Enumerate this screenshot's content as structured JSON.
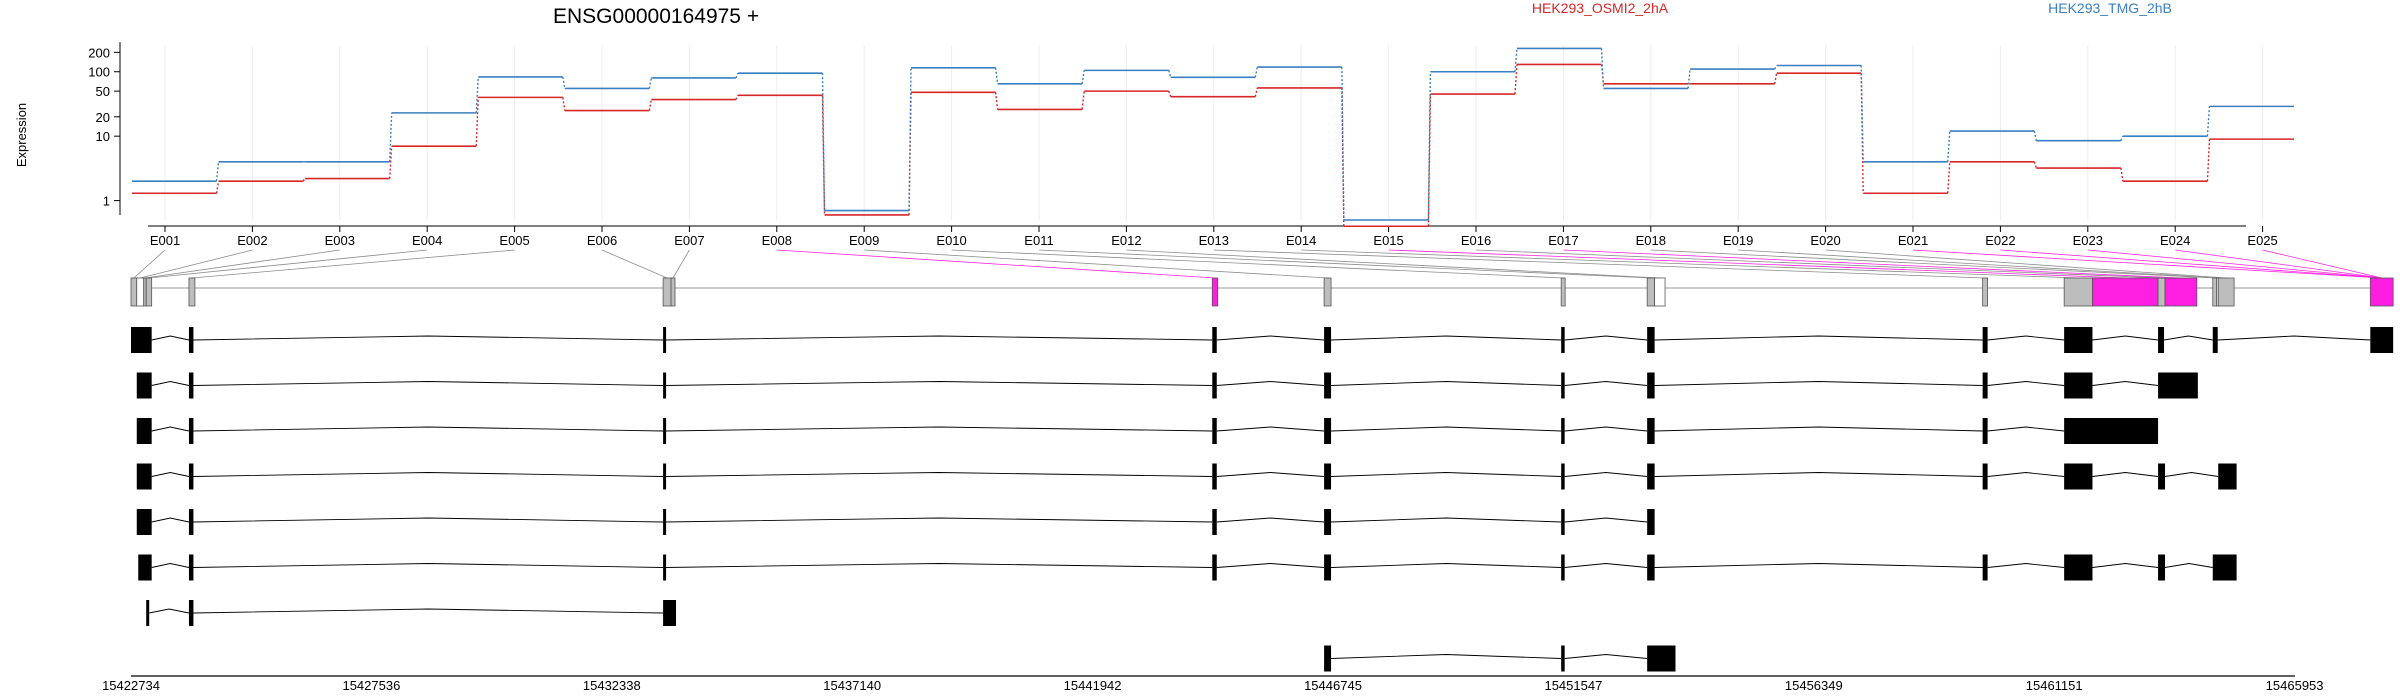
{
  "chart_data": {
    "type": "line",
    "title": "ENSG00000164975 +",
    "ylabel": "Expression",
    "yscale": "log",
    "ylim": [
      0.5,
      260
    ],
    "yticks": [
      1,
      10,
      20,
      50,
      100,
      200
    ],
    "grid": true,
    "legend_placement": "top-right",
    "categories": [
      "E001",
      "E002",
      "E003",
      "E004",
      "E005",
      "E006",
      "E007",
      "E008",
      "E009",
      "E010",
      "E011",
      "E012",
      "E013",
      "E014",
      "E015",
      "E016",
      "E017",
      "E018",
      "E019",
      "E020",
      "E021",
      "E022",
      "E023",
      "E024",
      "E025"
    ],
    "series": [
      {
        "name": "HEK293_OSMI2_2hA",
        "color": "#d62728",
        "values": [
          1.3,
          2.0,
          2.2,
          7,
          40,
          25,
          37,
          43,
          0.6,
          48,
          26,
          50,
          41,
          56,
          0.4,
          45,
          130,
          65,
          65,
          95,
          1.3,
          4,
          3.2,
          2,
          9
        ]
      },
      {
        "name": "HEK293_TMG_2hB",
        "color": "#3a7fc1",
        "values": [
          2.0,
          4.0,
          4.0,
          23,
          83,
          55,
          80,
          95,
          0.7,
          115,
          65,
          105,
          82,
          118,
          0.5,
          100,
          230,
          55,
          110,
          125,
          4.0,
          12,
          8.5,
          10,
          29
        ]
      }
    ],
    "genomic_coords": [
      "15422734",
      "15427536",
      "15432338",
      "15437140",
      "15441942",
      "15446745",
      "15451547",
      "15456349",
      "15461151",
      "15465953"
    ],
    "exon_track": {
      "genome_start": 15422734,
      "genome_end": 15465953,
      "highlight_color": "#ff1fe0",
      "exon_color": "#bdbdbd",
      "bins": [
        {
          "start": 15422734,
          "end": 15422850,
          "style": "gray"
        },
        {
          "start": 15422850,
          "end": 15422990,
          "style": "white"
        },
        {
          "start": 15422990,
          "end": 15423040,
          "style": "gray"
        },
        {
          "start": 15423040,
          "end": 15423150,
          "style": "gray"
        },
        {
          "start": 15423900,
          "end": 15424020,
          "style": "gray"
        },
        {
          "start": 15433440,
          "end": 15433600,
          "style": "gray"
        },
        {
          "start": 15433600,
          "end": 15433680,
          "style": "gray"
        },
        {
          "start": 15444490,
          "end": 15444600,
          "style": "magenta"
        },
        {
          "start": 15446740,
          "end": 15446880,
          "style": "gray"
        },
        {
          "start": 15451510,
          "end": 15451590,
          "style": "gray"
        },
        {
          "start": 15453240,
          "end": 15453390,
          "style": "gray"
        },
        {
          "start": 15453390,
          "end": 15453600,
          "style": "white"
        },
        {
          "start": 15459990,
          "end": 15460090,
          "style": "gray"
        },
        {
          "start": 15461630,
          "end": 15462200,
          "style": "gray"
        },
        {
          "start": 15462200,
          "end": 15463520,
          "style": "magenta"
        },
        {
          "start": 15463520,
          "end": 15463660,
          "style": "gray"
        },
        {
          "start": 15463660,
          "end": 15464300,
          "style": "magenta"
        },
        {
          "start": 15464620,
          "end": 15464700,
          "style": "gray"
        },
        {
          "start": 15464700,
          "end": 15464730,
          "style": "white"
        },
        {
          "start": 15464730,
          "end": 15465050,
          "style": "gray"
        },
        {
          "start": 15467790,
          "end": 15468250,
          "style": "magenta"
        }
      ],
      "transcripts": [
        [
          [
            15422734,
            15423150
          ],
          [
            15423900,
            15423990
          ],
          [
            15433440,
            15433500
          ],
          [
            15444490,
            15444580
          ],
          [
            15446740,
            15446880
          ],
          [
            15451510,
            15451580
          ],
          [
            15453240,
            15453390
          ],
          [
            15459990,
            15460090
          ],
          [
            15461630,
            15462200
          ],
          [
            15463520,
            15463640
          ],
          [
            15464620,
            15464720
          ],
          [
            15467790,
            15468250
          ]
        ],
        [
          [
            15422850,
            15423150
          ],
          [
            15423900,
            15423990
          ],
          [
            15433440,
            15433500
          ],
          [
            15444490,
            15444580
          ],
          [
            15446740,
            15446880
          ],
          [
            15451510,
            15451580
          ],
          [
            15453240,
            15453390
          ],
          [
            15459990,
            15460090
          ],
          [
            15461630,
            15462200
          ],
          [
            15463520,
            15464320
          ]
        ],
        [
          [
            15422850,
            15423150
          ],
          [
            15423900,
            15423990
          ],
          [
            15433440,
            15433500
          ],
          [
            15444490,
            15444580
          ],
          [
            15446740,
            15446880
          ],
          [
            15451510,
            15451580
          ],
          [
            15453240,
            15453390
          ],
          [
            15459990,
            15460090
          ],
          [
            15461630,
            15463520
          ]
        ],
        [
          [
            15422850,
            15423150
          ],
          [
            15423900,
            15423990
          ],
          [
            15433440,
            15433500
          ],
          [
            15444490,
            15444580
          ],
          [
            15446740,
            15446880
          ],
          [
            15451510,
            15451580
          ],
          [
            15453240,
            15453390
          ],
          [
            15459990,
            15460090
          ],
          [
            15461630,
            15462200
          ],
          [
            15463520,
            15463660
          ],
          [
            15464730,
            15465100
          ]
        ],
        [
          [
            15422850,
            15423150
          ],
          [
            15423900,
            15423990
          ],
          [
            15433440,
            15433500
          ],
          [
            15444490,
            15444580
          ],
          [
            15446740,
            15446880
          ],
          [
            15451510,
            15451580
          ],
          [
            15453240,
            15453390
          ]
        ],
        [
          [
            15422880,
            15423150
          ],
          [
            15423900,
            15423990
          ],
          [
            15433440,
            15433500
          ],
          [
            15444490,
            15444580
          ],
          [
            15446740,
            15446880
          ],
          [
            15451510,
            15451580
          ],
          [
            15453240,
            15453390
          ],
          [
            15459990,
            15460090
          ],
          [
            15461630,
            15462200
          ],
          [
            15463520,
            15463660
          ],
          [
            15464620,
            15465100
          ]
        ],
        [
          [
            15423040,
            15423100
          ],
          [
            15423900,
            15423990
          ],
          [
            15433440,
            15433700
          ]
        ],
        [
          [
            15446740,
            15446880
          ],
          [
            15451510,
            15451580
          ],
          [
            15453240,
            15453810
          ]
        ]
      ]
    }
  }
}
